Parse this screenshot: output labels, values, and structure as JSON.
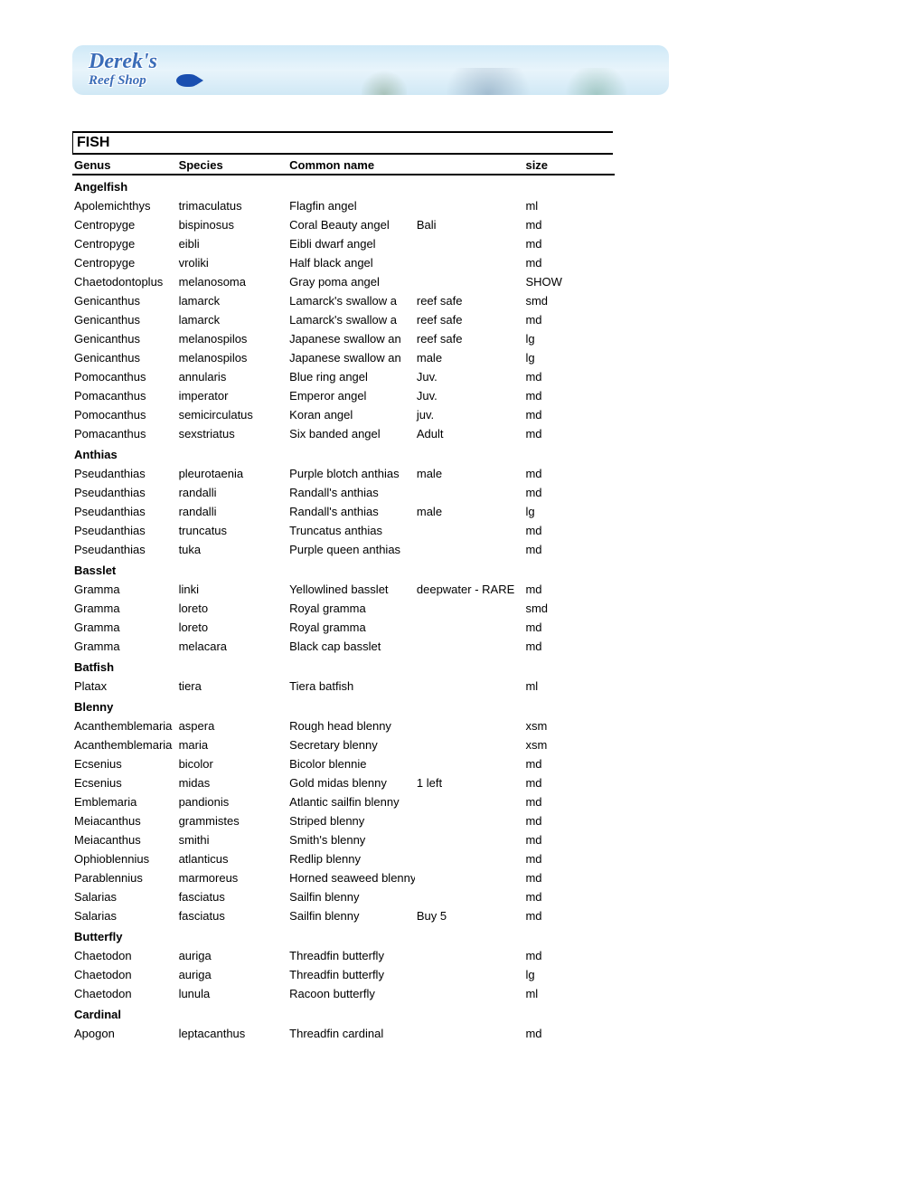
{
  "banner": {
    "line1": "Derek's",
    "line2": "Reef Shop"
  },
  "section_title": "FISH",
  "columns": {
    "genus": "Genus",
    "species": "Species",
    "common": "Common name",
    "size": "size"
  },
  "groups": [
    {
      "name": "Angelfish",
      "rows": [
        {
          "genus": "Apolemichthys",
          "species": "trimaculatus",
          "common": "Flagfin angel",
          "note": "",
          "size": "ml"
        },
        {
          "genus": "Centropyge",
          "species": "bispinosus",
          "common": "Coral Beauty angel",
          "note": "Bali",
          "size": "md"
        },
        {
          "genus": "Centropyge",
          "species": "eibli",
          "common": "Eibli dwarf angel",
          "note": "",
          "size": "md"
        },
        {
          "genus": "Centropyge",
          "species": "vroliki",
          "common": "Half black angel",
          "note": "",
          "size": "md"
        },
        {
          "genus": "Chaetodontoplus",
          "species": "melanosoma",
          "common": "Gray poma angel",
          "note": "",
          "size": "SHOW"
        },
        {
          "genus": "Genicanthus",
          "species": "lamarck",
          "common": "Lamarck's swallow a",
          "note": "reef safe",
          "size": "smd"
        },
        {
          "genus": "Genicanthus",
          "species": "lamarck",
          "common": "Lamarck's swallow a",
          "note": "reef safe",
          "size": "md"
        },
        {
          "genus": "Genicanthus",
          "species": "melanospilos",
          "common": "Japanese swallow an",
          "note": "reef safe",
          "size": "lg"
        },
        {
          "genus": "Genicanthus",
          "species": "melanospilos",
          "common": "Japanese swallow an",
          "note": "male",
          "size": "lg"
        },
        {
          "genus": "Pomocanthus",
          "species": "annularis",
          "common": "Blue ring angel",
          "note": "Juv.",
          "size": "md"
        },
        {
          "genus": "Pomacanthus",
          "species": "imperator",
          "common": "Emperor angel",
          "note": "Juv.",
          "size": "md"
        },
        {
          "genus": "Pomocanthus",
          "species": "semicirculatus",
          "common": "Koran angel",
          "note": "juv.",
          "size": "md"
        },
        {
          "genus": "Pomacanthus",
          "species": "sexstriatus",
          "common": "Six banded angel",
          "note": "Adult",
          "size": "md"
        }
      ]
    },
    {
      "name": "Anthias",
      "rows": [
        {
          "genus": "Pseudanthias",
          "species": "pleurotaenia",
          "common": "Purple blotch anthias",
          "note": "male",
          "size": "md"
        },
        {
          "genus": "Pseudanthias",
          "species": "randalli",
          "common": "Randall's anthias",
          "note": "",
          "size": "md"
        },
        {
          "genus": "Pseudanthias",
          "species": "randalli",
          "common": "Randall's anthias",
          "note": "male",
          "size": "lg"
        },
        {
          "genus": "Pseudanthias",
          "species": "truncatus",
          "common": "Truncatus anthias",
          "note": "",
          "size": "md"
        },
        {
          "genus": "Pseudanthias",
          "species": "tuka",
          "common": "Purple queen anthias",
          "note": "",
          "size": "md"
        }
      ]
    },
    {
      "name": "Basslet",
      "rows": [
        {
          "genus": "Gramma",
          "species": "linki",
          "common": "Yellowlined basslet",
          "note": "deepwater - RARE",
          "size": "md"
        },
        {
          "genus": "Gramma",
          "species": "loreto",
          "common": "Royal gramma",
          "note": "",
          "size": "smd"
        },
        {
          "genus": "Gramma",
          "species": "loreto",
          "common": "Royal gramma",
          "note": "",
          "size": "md"
        },
        {
          "genus": "Gramma",
          "species": "melacara",
          "common": "Black cap basslet",
          "note": "",
          "size": "md"
        }
      ]
    },
    {
      "name": "Batfish",
      "rows": [
        {
          "genus": "Platax",
          "species": "tiera",
          "common": "Tiera batfish",
          "note": "",
          "size": "ml"
        }
      ]
    },
    {
      "name": "Blenny",
      "rows": [
        {
          "genus": "Acanthemblemaria",
          "species": "aspera",
          "common": "Rough head blenny",
          "note": "",
          "size": "xsm"
        },
        {
          "genus": "Acanthemblemaria",
          "species": "maria",
          "common": "Secretary blenny",
          "note": "",
          "size": "xsm"
        },
        {
          "genus": "Ecsenius",
          "species": "bicolor",
          "common": "Bicolor blennie",
          "note": "",
          "size": "md"
        },
        {
          "genus": "Ecsenius",
          "species": "midas",
          "common": "Gold midas blenny",
          "note": "1 left",
          "size": "md"
        },
        {
          "genus": "Emblemaria",
          "species": "pandionis",
          "common": "Atlantic sailfin blenny",
          "note": "",
          "size": "md"
        },
        {
          "genus": "Meiacanthus",
          "species": "grammistes",
          "common": "Striped blenny",
          "note": "",
          "size": "md"
        },
        {
          "genus": "Meiacanthus",
          "species": "smithi",
          "common": "Smith's blenny",
          "note": "",
          "size": "md"
        },
        {
          "genus": "Ophioblennius",
          "species": "atlanticus",
          "common": "Redlip blenny",
          "note": "",
          "size": "md"
        },
        {
          "genus": "Parablennius",
          "species": "marmoreus",
          "common": "Horned seaweed blenny",
          "note": "",
          "size": "md"
        },
        {
          "genus": "Salarias",
          "species": "fasciatus",
          "common": "Sailfin blenny",
          "note": "",
          "size": "md"
        },
        {
          "genus": "Salarias",
          "species": "fasciatus",
          "common": "Sailfin blenny",
          "note": "Buy 5",
          "size": "md"
        }
      ]
    },
    {
      "name": "Butterfly",
      "rows": [
        {
          "genus": "Chaetodon",
          "species": "auriga",
          "common": "Threadfin butterfly",
          "note": "",
          "size": "md"
        },
        {
          "genus": "Chaetodon",
          "species": "auriga",
          "common": "Threadfin butterfly",
          "note": "",
          "size": "lg"
        },
        {
          "genus": "Chaetodon",
          "species": "lunula",
          "common": "Racoon butterfly",
          "note": "",
          "size": "ml"
        }
      ]
    },
    {
      "name": "Cardinal",
      "rows": [
        {
          "genus": "Apogon",
          "species": "leptacanthus",
          "common": "Threadfin cardinal",
          "note": "",
          "size": "md"
        }
      ]
    }
  ]
}
